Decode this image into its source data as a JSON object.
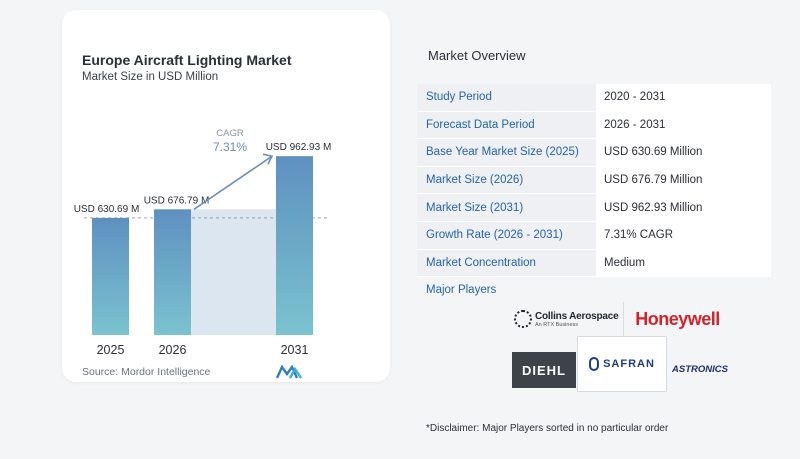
{
  "card": {
    "title": "Europe Aircraft Lighting Market",
    "subtitle": "Market Size in USD Million",
    "source": "Source:  Mordor Intelligence"
  },
  "chart_data": {
    "type": "bar",
    "categories": [
      "2025",
      "2026",
      "2031"
    ],
    "values": [
      630.69,
      676.79,
      962.93
    ],
    "value_labels": [
      "USD 630.69 M",
      "USD 676.79 M",
      "USD 962.93 M"
    ],
    "ylim": [
      0,
      1050
    ],
    "cagr_label": "CAGR",
    "cagr_value": "7.31%",
    "bar_color_top": "#5e90c0",
    "bar_color_bottom": "#7ac3cf",
    "gap_fill": "#dbe6f0",
    "grid": false
  },
  "overview": {
    "title": "Market Overview",
    "rows": [
      {
        "label": "Study Period",
        "value": "2020 - 2031"
      },
      {
        "label": "Forecast Data Period",
        "value": "2026 - 2031"
      },
      {
        "label": "Base Year Market Size (2025)",
        "value": "USD 630.69 Million"
      },
      {
        "label": "Market Size (2026)",
        "value": "USD 676.79 Million"
      },
      {
        "label": "Market Size (2031)",
        "value": "USD 962.93 Million"
      },
      {
        "label": "Growth Rate (2026 - 2031)",
        "value": "7.31% CAGR"
      },
      {
        "label": "Market Concentration",
        "value": "Medium"
      }
    ],
    "players_title": "Major Players"
  },
  "players": {
    "collins": "Collins Aerospace",
    "collins_sub": "An RTX Business",
    "honeywell": "Honeywell",
    "diehl": "DIEHL",
    "safran": "SAFRAN",
    "astronics": "ASTRONICS"
  },
  "disclaimer": "*Disclaimer: Major Players sorted in no particular order",
  "colors": {
    "accent": "#2563a9",
    "label_bg": "#eef0f3"
  }
}
